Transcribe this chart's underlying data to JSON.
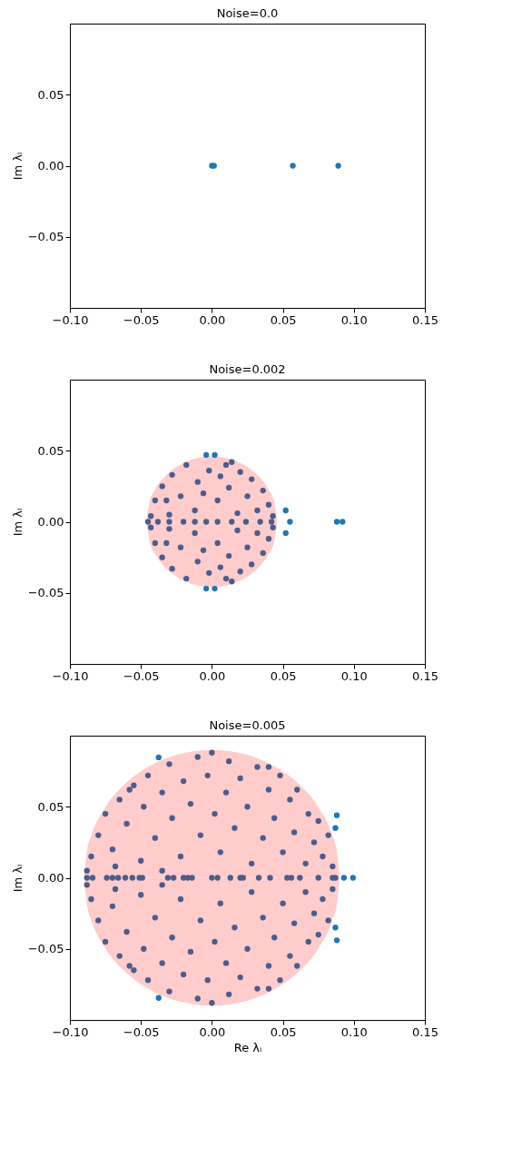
{
  "chart_data": [
    {
      "type": "scatter",
      "title": "Noise=0.0",
      "ylabel": "Im λᵢ",
      "xlim": [
        -0.1,
        0.15
      ],
      "ylim": [
        -0.1,
        0.1
      ],
      "xticks": [
        {
          "value": -0.1,
          "label": "−0.10"
        },
        {
          "value": -0.05,
          "label": "−0.05"
        },
        {
          "value": 0,
          "label": "0.00"
        },
        {
          "value": 0.05,
          "label": "0.05"
        },
        {
          "value": 0.1,
          "label": "0.10"
        },
        {
          "value": 0.15,
          "label": "0.15"
        }
      ],
      "yticks": [
        {
          "value": -0.05,
          "label": "−0.05"
        },
        {
          "value": 0,
          "label": "0.00"
        },
        {
          "value": 0.05,
          "label": "0.05"
        }
      ],
      "grid": false,
      "marker": "circle",
      "series": [
        {
          "type": "scatter",
          "color": "#1f77b4",
          "x": [
            0.0,
            0.0015,
            0.057,
            0.089
          ],
          "values": [
            0,
            0,
            0,
            0
          ]
        }
      ]
    },
    {
      "type": "scatter",
      "title": "Noise=0.002",
      "ylabel": "Im λᵢ",
      "xlim": [
        -0.1,
        0.15
      ],
      "ylim": [
        -0.1,
        0.1
      ],
      "xticks": [
        {
          "value": -0.1,
          "label": "−0.10"
        },
        {
          "value": -0.05,
          "label": "−0.05"
        },
        {
          "value": 0,
          "label": "0.00"
        },
        {
          "value": 0.05,
          "label": "0.05"
        },
        {
          "value": 0.1,
          "label": "0.10"
        },
        {
          "value": 0.15,
          "label": "0.15"
        }
      ],
      "yticks": [
        {
          "value": -0.05,
          "label": "−0.05"
        },
        {
          "value": 0,
          "label": "0.00"
        },
        {
          "value": 0.05,
          "label": "0.05"
        }
      ],
      "grid": false,
      "marker": "circle",
      "series": [
        {
          "type": "area",
          "marker": "none",
          "color": "#ffcccc",
          "x": [
            -0.046,
            -0.044,
            -0.04,
            -0.035,
            -0.03,
            -0.02,
            -0.01,
            0,
            0.01,
            0.02,
            0.03,
            0.035,
            0.04,
            0.044,
            0.046
          ],
          "values": [
            0,
            0.0134,
            0.0227,
            0.0298,
            0.0349,
            0.0414,
            0.0449,
            0.046,
            0.0449,
            0.0414,
            0.0349,
            0.0298,
            0.0227,
            0.0134,
            0
          ]
        },
        {
          "type": "area",
          "marker": "none",
          "color": "#ffcccc",
          "x": [
            -0.046,
            -0.044,
            -0.04,
            -0.035,
            -0.03,
            -0.02,
            -0.01,
            0,
            0.01,
            0.02,
            0.03,
            0.035,
            0.04,
            0.044,
            0.046
          ],
          "values": [
            0,
            -0.0134,
            -0.0227,
            -0.0298,
            -0.0349,
            -0.0414,
            -0.0449,
            -0.046,
            -0.0449,
            -0.0414,
            -0.0349,
            -0.0298,
            -0.0227,
            -0.0134,
            0
          ]
        },
        {
          "type": "scatter",
          "color": "#4a5d8c",
          "x": [
            -0.045,
            -0.038,
            -0.03,
            -0.02,
            -0.012,
            -0.004,
            0.004,
            0.014,
            0.024,
            0.034,
            0.042,
            -0.04,
            -0.035,
            -0.03,
            -0.028,
            -0.022,
            -0.018,
            -0.012,
            -0.01,
            -0.002,
            0.004,
            0.01,
            0.012,
            0.018,
            0.02,
            0.025,
            0.028,
            0.032,
            0.036,
            0.04,
            0.043,
            -0.043,
            0.014,
            -0.032,
            -0.006,
            0.006,
            -0.04,
            -0.035,
            -0.03,
            -0.028,
            -0.022,
            -0.018,
            -0.012,
            -0.01,
            -0.002,
            0.004,
            0.01,
            0.012,
            0.018,
            0.02,
            0.025,
            0.028,
            0.032,
            0.036,
            0.04,
            0.043,
            -0.043,
            0.014,
            -0.032,
            -0.006,
            0.006
          ],
          "values": [
            0,
            0,
            0,
            0,
            0,
            0,
            0,
            0,
            0,
            0,
            0,
            0.015,
            0.025,
            0.005,
            0.033,
            0.018,
            0.04,
            0.008,
            0.028,
            0.036,
            0.015,
            0.04,
            0.024,
            0.006,
            0.035,
            0.018,
            0.03,
            0.008,
            0.022,
            0.012,
            0.004,
            0.004,
            0.042,
            0.015,
            0.02,
            0.032,
            -0.015,
            -0.025,
            -0.005,
            -0.033,
            -0.018,
            -0.04,
            -0.008,
            -0.028,
            -0.036,
            -0.015,
            -0.04,
            -0.024,
            -0.006,
            -0.035,
            -0.018,
            -0.03,
            -0.008,
            -0.022,
            -0.012,
            -0.004,
            -0.004,
            -0.042,
            -0.015,
            -0.02,
            -0.032
          ]
        },
        {
          "type": "scatter",
          "color": "#1f77b4",
          "x": [
            -0.004,
            0.002,
            -0.004,
            0.002,
            0.052,
            0.055,
            0.052,
            0.088,
            0.092
          ],
          "values": [
            0.047,
            0.047,
            -0.047,
            -0.047,
            0.008,
            0,
            -0.008,
            0,
            0
          ]
        }
      ]
    },
    {
      "type": "scatter",
      "title": "Noise=0.005",
      "xlabel": "Re λᵢ",
      "ylabel": "Im λᵢ",
      "xlim": [
        -0.1,
        0.15
      ],
      "ylim": [
        -0.1,
        0.1
      ],
      "xticks": [
        {
          "value": -0.1,
          "label": "−0.10"
        },
        {
          "value": -0.05,
          "label": "−0.05"
        },
        {
          "value": 0,
          "label": "0.00"
        },
        {
          "value": 0.05,
          "label": "0.05"
        },
        {
          "value": 0.1,
          "label": "0.10"
        },
        {
          "value": 0.15,
          "label": "0.15"
        }
      ],
      "yticks": [
        {
          "value": -0.05,
          "label": "−0.05"
        },
        {
          "value": 0,
          "label": "0.00"
        },
        {
          "value": 0.05,
          "label": "0.05"
        }
      ],
      "grid": false,
      "marker": "circle",
      "series": [
        {
          "type": "area",
          "marker": "none",
          "color": "#ffcccc",
          "x": [
            -0.09,
            -0.088,
            -0.085,
            -0.075,
            -0.06,
            -0.045,
            -0.03,
            -0.015,
            0,
            0.015,
            0.03,
            0.045,
            0.06,
            0.075,
            0.085,
            0.088,
            0.09
          ],
          "values": [
            0,
            0.0189,
            0.0296,
            0.0497,
            0.0671,
            0.0779,
            0.0849,
            0.0887,
            0.09,
            0.0887,
            0.0849,
            0.0779,
            0.0671,
            0.0497,
            0.0296,
            0.0189,
            0
          ]
        },
        {
          "type": "area",
          "marker": "none",
          "color": "#ffcccc",
          "x": [
            -0.09,
            -0.088,
            -0.085,
            -0.075,
            -0.06,
            -0.045,
            -0.03,
            -0.015,
            0,
            0.015,
            0.03,
            0.045,
            0.06,
            0.075,
            0.085,
            0.088,
            0.09
          ],
          "values": [
            0,
            -0.0189,
            -0.0296,
            -0.0497,
            -0.0671,
            -0.0779,
            -0.0849,
            -0.0887,
            -0.09,
            -0.0887,
            -0.0849,
            -0.0779,
            -0.0671,
            -0.0497,
            -0.0296,
            -0.0189,
            0
          ]
        },
        {
          "type": "scatter",
          "color": "#4a5d8c",
          "x": [
            -0.088,
            -0.084,
            -0.074,
            -0.07,
            -0.066,
            -0.061,
            -0.056,
            -0.051,
            -0.049,
            -0.031,
            -0.027,
            -0.02,
            -0.017,
            -0.014,
            0.0,
            0.004,
            0.013,
            0.02,
            0.022,
            0.033,
            0.041,
            0.053,
            0.056,
            0.062,
            0.075,
            0.085,
            0.087,
            -0.08,
            -0.075,
            -0.085,
            -0.07,
            -0.065,
            -0.06,
            -0.055,
            -0.05,
            -0.048,
            -0.045,
            -0.04,
            -0.035,
            -0.03,
            -0.028,
            -0.022,
            -0.02,
            -0.015,
            -0.01,
            -0.008,
            -0.003,
            0.002,
            0.006,
            0.01,
            0.012,
            0.016,
            0.02,
            0.025,
            0.028,
            0.032,
            0.036,
            0.04,
            0.044,
            0.048,
            0.05,
            0.055,
            0.058,
            0.06,
            0.066,
            0.068,
            0.072,
            0.075,
            0.078,
            0.082,
            0.085,
            -0.088,
            -0.068,
            -0.035,
            0.0,
            0.04,
            -0.058,
            -0.08,
            -0.075,
            -0.085,
            -0.07,
            -0.065,
            -0.06,
            -0.055,
            -0.05,
            -0.048,
            -0.045,
            -0.04,
            -0.035,
            -0.03,
            -0.028,
            -0.022,
            -0.02,
            -0.015,
            -0.01,
            -0.008,
            -0.003,
            0.002,
            0.006,
            0.01,
            0.012,
            0.016,
            0.02,
            0.025,
            0.028,
            0.032,
            0.036,
            0.04,
            0.044,
            0.048,
            0.05,
            0.055,
            0.058,
            0.06,
            0.066,
            0.068,
            0.072,
            0.075,
            0.078,
            0.082,
            0.085,
            -0.088,
            -0.068,
            -0.035,
            0.0,
            0.04,
            -0.058
          ],
          "values": [
            0,
            0,
            0,
            0,
            0,
            0,
            0,
            0,
            0,
            0,
            0,
            0,
            0,
            0,
            0,
            0,
            0,
            0,
            0,
            0,
            0,
            0,
            0,
            0,
            0,
            0,
            0,
            0.03,
            0.045,
            0.015,
            0.02,
            0.055,
            0.038,
            0.065,
            0.012,
            0.05,
            0.072,
            0.028,
            0.06,
            0.08,
            0.042,
            0.015,
            0.068,
            0.052,
            0.085,
            0.03,
            0.072,
            0.045,
            0.018,
            0.06,
            0.082,
            0.035,
            0.07,
            0.05,
            0.01,
            0.078,
            0.028,
            0.062,
            0.042,
            0.072,
            0.018,
            0.055,
            0.032,
            0.062,
            0.01,
            0.045,
            0.025,
            0.04,
            0.015,
            0.03,
            0.008,
            0.005,
            0.008,
            0.005,
            0.088,
            0.078,
            0.062,
            -0.03,
            -0.045,
            -0.015,
            -0.02,
            -0.055,
            -0.038,
            -0.065,
            -0.012,
            -0.05,
            -0.072,
            -0.028,
            -0.06,
            -0.08,
            -0.042,
            -0.015,
            -0.068,
            -0.052,
            -0.085,
            -0.03,
            -0.072,
            -0.045,
            -0.018,
            -0.06,
            -0.082,
            -0.035,
            -0.07,
            -0.05,
            -0.01,
            -0.078,
            -0.028,
            -0.062,
            -0.042,
            -0.072,
            -0.018,
            -0.055,
            -0.032,
            -0.062,
            -0.01,
            -0.045,
            -0.025,
            -0.04,
            -0.015,
            -0.03,
            -0.008,
            -0.005,
            -0.008,
            -0.005,
            -0.088,
            -0.078,
            -0.062
          ]
        },
        {
          "type": "scatter",
          "color": "#1f77b4",
          "x": [
            -0.0375,
            -0.0375,
            0.088,
            0.087,
            0.093,
            0.0994,
            0.087,
            0.088
          ],
          "values": [
            0.0847,
            -0.0845,
            0.044,
            0.035,
            0,
            0,
            -0.035,
            -0.044
          ]
        }
      ]
    }
  ]
}
